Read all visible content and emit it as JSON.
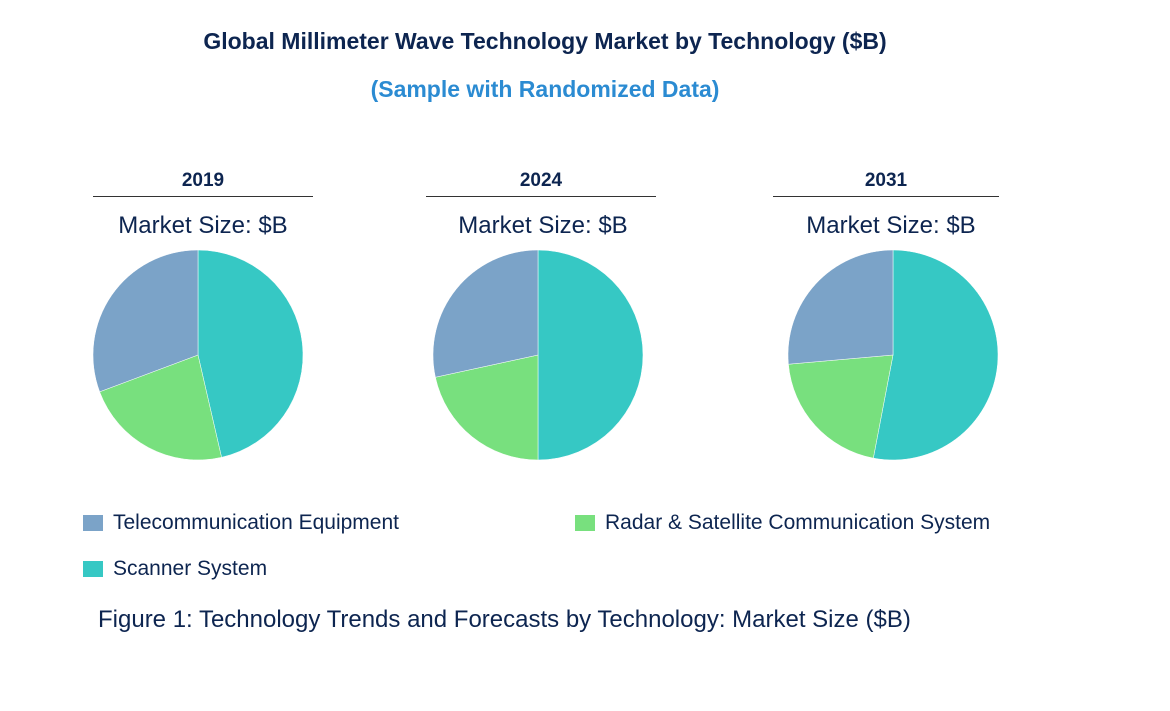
{
  "title": "Global Millimeter Wave Technology Market by Technology ($B)",
  "subtitle": "(Sample with Randomized Data)",
  "caption": "Figure 1: Technology Trends and Forecasts by Technology: Market Size ($B)",
  "legend": [
    {
      "name": "Telecommunication Equipment",
      "color": "#7ba3c8"
    },
    {
      "name": "Radar & Satellite Communication System",
      "color": "#78e07e"
    },
    {
      "name": "Scanner System",
      "color": "#36c8c4"
    }
  ],
  "chart_data": [
    {
      "type": "pie",
      "title": "2019",
      "subtitle": "Market Size: $B",
      "unit": "percent share (estimated)",
      "slices": [
        {
          "name": "Scanner System",
          "value": 46.4
        },
        {
          "name": "Radar & Satellite Communication System",
          "value": 22.9
        },
        {
          "name": "Telecommunication Equipment",
          "value": 30.7
        }
      ]
    },
    {
      "type": "pie",
      "title": "2024",
      "subtitle": "Market Size: $B",
      "unit": "percent share (estimated)",
      "slices": [
        {
          "name": "Scanner System",
          "value": 50.0
        },
        {
          "name": "Radar & Satellite Communication System",
          "value": 21.6
        },
        {
          "name": "Telecommunication Equipment",
          "value": 28.4
        }
      ]
    },
    {
      "type": "pie",
      "title": "2031",
      "subtitle": "Market Size: $B",
      "unit": "percent share (estimated)",
      "slices": [
        {
          "name": "Scanner System",
          "value": 53.0
        },
        {
          "name": "Radar & Satellite Communication System",
          "value": 20.6
        },
        {
          "name": "Telecommunication Equipment",
          "value": 26.4
        }
      ]
    }
  ]
}
